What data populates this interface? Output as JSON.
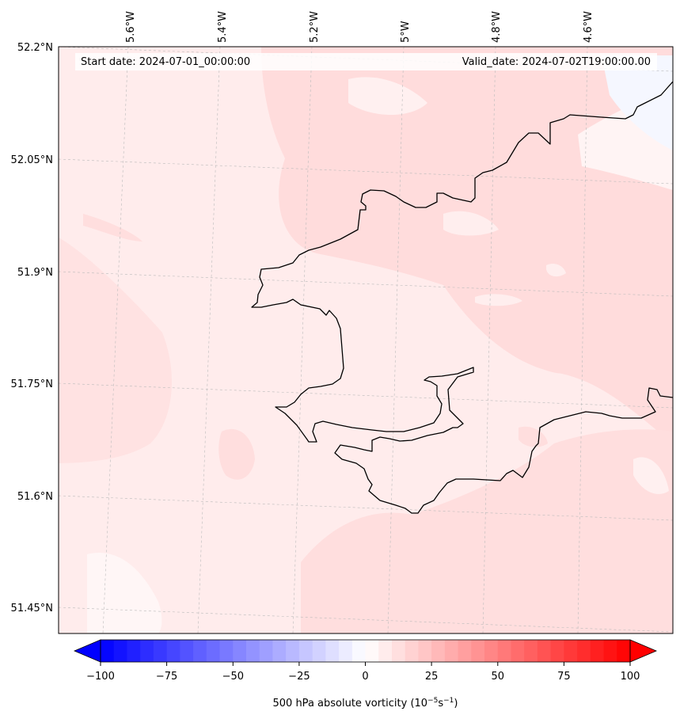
{
  "map": {
    "start_label": "Start date: 2024-07-01_00:00:00",
    "valid_label": "Valid_date: 2024-07-02T19:00:00.00",
    "lat_labels": [
      "52.2°N",
      "52.05°N",
      "51.9°N",
      "51.75°N",
      "51.6°N",
      "51.45°N"
    ],
    "lon_labels": [
      "5.6°W",
      "5.4°W",
      "5.2°W",
      "5°W",
      "4.8°W",
      "4.6°W"
    ],
    "field_colors": {
      "land_base": "#ffecec",
      "sea_pink": "#ffe0e0",
      "stronger": "#ffd8d8",
      "near_zero": "#fff6f6",
      "slight_negative": "#f6f8ff",
      "coastline": "#000000",
      "gridline": "#bbbbbb"
    }
  },
  "colorbar": {
    "min": -100,
    "max": 100,
    "ticks": [
      "−100",
      "−75",
      "−50",
      "−25",
      "0",
      "25",
      "50",
      "75",
      "100"
    ],
    "label": "500 hPa absolute vorticity (10",
    "label_exp1": "−5",
    "label_unit": "s",
    "label_exp2": "−1",
    "label_close": ")",
    "neg_color": "#0000ff",
    "zero_color": "#ffffff",
    "pos_color": "#ff0000"
  }
}
